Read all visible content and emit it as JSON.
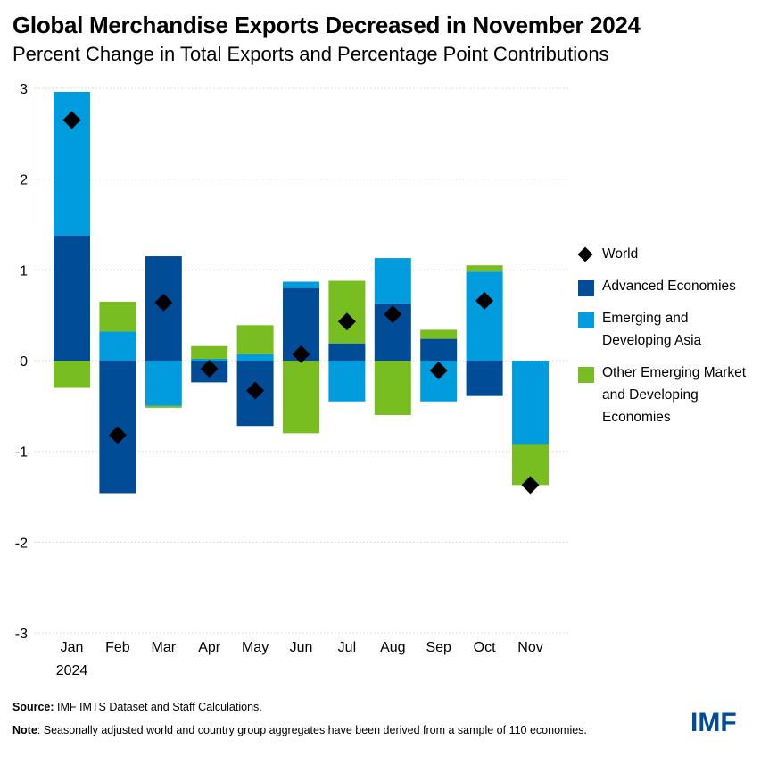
{
  "title": "Global Merchandise Exports Decreased in November 2024",
  "subtitle": "Percent Change in Total Exports and Percentage Point Contributions",
  "footer": {
    "source_label": "Source:",
    "source_text": " IMF IMTS Dataset and Staff Calculations.",
    "note_label": "Note",
    "note_text": ": Seasonally adjusted world and country group aggregates have been derived from a sample of 110 economies.",
    "logo": "IMF"
  },
  "legend": [
    {
      "name": "World",
      "marker": "diamond",
      "color": "#000000"
    },
    {
      "name": "Advanced Economies",
      "marker": "square",
      "color": "#004C97"
    },
    {
      "name": "Emerging and Developing Asia",
      "marker": "square",
      "color": "#009CDE"
    },
    {
      "name": "Other Emerging Market and Developing Economies",
      "marker": "square",
      "color": "#78BE20"
    }
  ],
  "chart_data": {
    "type": "bar",
    "stacked": true,
    "title": "Global Merchandise Exports Decreased in November 2024",
    "subtitle": "Percent Change in Total Exports and Percentage Point Contributions",
    "xlabel": "",
    "ylabel": "",
    "categories": [
      "Jan",
      "Feb",
      "Mar",
      "Apr",
      "May",
      "Jun",
      "Jul",
      "Aug",
      "Sep",
      "Oct",
      "Nov"
    ],
    "year_label": "2024",
    "ylim": [
      -3,
      3
    ],
    "yticks": [
      3,
      2,
      1,
      0,
      -1,
      -2,
      -3
    ],
    "grid": true,
    "legend_position": "right",
    "series": [
      {
        "name": "Advanced Economies",
        "type": "bar",
        "color": "#004C97",
        "values": [
          1.38,
          -1.46,
          1.15,
          -0.24,
          -0.72,
          0.8,
          0.19,
          0.63,
          0.24,
          -0.39,
          0.0
        ]
      },
      {
        "name": "Emerging and Developing Asia",
        "type": "bar",
        "color": "#009CDE",
        "values": [
          1.58,
          0.32,
          -0.5,
          0.02,
          0.07,
          0.07,
          -0.45,
          0.5,
          -0.45,
          0.98,
          -0.92
        ]
      },
      {
        "name": "Other Emerging Market and Developing Economies",
        "type": "bar",
        "color": "#78BE20",
        "values": [
          -0.3,
          0.33,
          -0.02,
          0.14,
          0.32,
          -0.8,
          0.69,
          -0.6,
          0.1,
          0.07,
          -0.45
        ]
      },
      {
        "name": "World",
        "type": "scatter",
        "marker": "diamond",
        "color": "#000000",
        "values": [
          2.65,
          -0.82,
          0.64,
          -0.09,
          -0.33,
          0.07,
          0.43,
          0.51,
          -0.11,
          0.66,
          -1.37
        ]
      }
    ]
  }
}
